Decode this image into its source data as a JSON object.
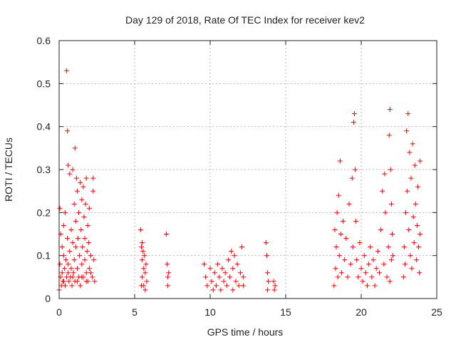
{
  "chart_data": {
    "type": "scatter",
    "title": "Day 129 of 2018, Rate Of TEC Index for receiver kev2",
    "xlabel": "GPS time / hours",
    "ylabel": "ROTI / TECUs",
    "xlim": [
      0,
      25
    ],
    "ylim": [
      0,
      0.6
    ],
    "x_ticks": [
      0,
      5,
      10,
      15,
      20,
      25
    ],
    "x_tick_labels": [
      "0",
      "5",
      "10",
      "15",
      "20",
      "25"
    ],
    "y_ticks": [
      0,
      0.1,
      0.2,
      0.3,
      0.4,
      0.5,
      0.6
    ],
    "y_tick_labels": [
      "0",
      "0.1",
      "0.2",
      "0.3",
      "0.4",
      "0.5",
      "0.6"
    ],
    "grid": true,
    "marker": "+",
    "color": "#ff0000",
    "series": [
      {
        "name": "ROTI",
        "points": [
          [
            0.0,
            0.02
          ],
          [
            0.05,
            0.21
          ],
          [
            0.05,
            0.08
          ],
          [
            0.1,
            0.05
          ],
          [
            0.1,
            0.15
          ],
          [
            0.15,
            0.03
          ],
          [
            0.2,
            0.12
          ],
          [
            0.2,
            0.06
          ],
          [
            0.25,
            0.04
          ],
          [
            0.3,
            0.1
          ],
          [
            0.3,
            0.17
          ],
          [
            0.35,
            0.07
          ],
          [
            0.4,
            0.03
          ],
          [
            0.4,
            0.2
          ],
          [
            0.45,
            0.09
          ],
          [
            0.5,
            0.05
          ],
          [
            0.5,
            0.53
          ],
          [
            0.55,
            0.39
          ],
          [
            0.55,
            0.14
          ],
          [
            0.6,
            0.31
          ],
          [
            0.6,
            0.08
          ],
          [
            0.65,
            0.04
          ],
          [
            0.7,
            0.29
          ],
          [
            0.7,
            0.11
          ],
          [
            0.75,
            0.05
          ],
          [
            0.8,
            0.16
          ],
          [
            0.8,
            0.07
          ],
          [
            0.85,
            0.03
          ],
          [
            0.9,
            0.13
          ],
          [
            0.9,
            0.3
          ],
          [
            0.95,
            0.06
          ],
          [
            1.0,
            0.22
          ],
          [
            1.0,
            0.09
          ],
          [
            1.05,
            0.35
          ],
          [
            1.05,
            0.04
          ],
          [
            1.1,
            0.18
          ],
          [
            1.1,
            0.12
          ],
          [
            1.15,
            0.28
          ],
          [
            1.2,
            0.07
          ],
          [
            1.2,
            0.25
          ],
          [
            1.25,
            0.14
          ],
          [
            1.3,
            0.05
          ],
          [
            1.3,
            0.2
          ],
          [
            1.35,
            0.1
          ],
          [
            1.4,
            0.27
          ],
          [
            1.4,
            0.03
          ],
          [
            1.45,
            0.16
          ],
          [
            1.5,
            0.08
          ],
          [
            1.5,
            0.23
          ],
          [
            1.55,
            0.12
          ],
          [
            1.6,
            0.26
          ],
          [
            1.6,
            0.05
          ],
          [
            1.65,
            0.19
          ],
          [
            1.7,
            0.09
          ],
          [
            1.7,
            0.14
          ],
          [
            1.75,
            0.22
          ],
          [
            1.8,
            0.06
          ],
          [
            1.8,
            0.28
          ],
          [
            1.85,
            0.11
          ],
          [
            1.9,
            0.17
          ],
          [
            1.9,
            0.04
          ],
          [
            1.95,
            0.13
          ],
          [
            2.0,
            0.21
          ],
          [
            2.0,
            0.07
          ],
          [
            2.1,
            0.1
          ],
          [
            2.2,
            0.05
          ],
          [
            2.25,
            0.28
          ],
          [
            2.25,
            0.25
          ],
          [
            2.3,
            0.09
          ],
          [
            2.35,
            0.04
          ],
          [
            0.3,
            0.04
          ],
          [
            0.6,
            0.06
          ],
          [
            0.9,
            0.05
          ],
          [
            1.2,
            0.04
          ],
          [
            1.5,
            0.05
          ],
          [
            1.8,
            0.04
          ],
          [
            2.1,
            0.06
          ],
          [
            5.4,
            0.16
          ],
          [
            5.45,
            0.12
          ],
          [
            5.5,
            0.09
          ],
          [
            5.5,
            0.05
          ],
          [
            5.55,
            0.11
          ],
          [
            5.6,
            0.07
          ],
          [
            5.6,
            0.03
          ],
          [
            5.65,
            0.1
          ],
          [
            5.7,
            0.06
          ],
          [
            5.7,
            0.02
          ],
          [
            5.75,
            0.08
          ],
          [
            5.8,
            0.04
          ],
          [
            5.45,
            0.03
          ],
          [
            5.5,
            0.13
          ],
          [
            7.1,
            0.15
          ],
          [
            7.15,
            0.08
          ],
          [
            7.2,
            0.05
          ],
          [
            7.2,
            0.03
          ],
          [
            7.25,
            0.06
          ],
          [
            9.6,
            0.08
          ],
          [
            9.7,
            0.05
          ],
          [
            9.8,
            0.03
          ],
          [
            10.0,
            0.07
          ],
          [
            10.1,
            0.04
          ],
          [
            10.2,
            0.02
          ],
          [
            10.3,
            0.06
          ],
          [
            10.4,
            0.03
          ],
          [
            10.5,
            0.08
          ],
          [
            10.6,
            0.05
          ],
          [
            10.7,
            0.02
          ],
          [
            10.8,
            0.07
          ],
          [
            10.9,
            0.04
          ],
          [
            11.0,
            0.06
          ],
          [
            11.1,
            0.03
          ],
          [
            11.2,
            0.09
          ],
          [
            11.3,
            0.05
          ],
          [
            11.4,
            0.11
          ],
          [
            11.5,
            0.07
          ],
          [
            11.6,
            0.1
          ],
          [
            11.7,
            0.04
          ],
          [
            11.8,
            0.08
          ],
          [
            11.9,
            0.03
          ],
          [
            12.0,
            0.06
          ],
          [
            12.1,
            0.12
          ],
          [
            12.2,
            0.05
          ],
          [
            11.5,
            0.02
          ],
          [
            12.2,
            0.03
          ],
          [
            13.7,
            0.13
          ],
          [
            13.75,
            0.1
          ],
          [
            13.8,
            0.06
          ],
          [
            13.8,
            0.02
          ],
          [
            13.85,
            0.04
          ],
          [
            14.2,
            0.04
          ],
          [
            14.25,
            0.02
          ],
          [
            14.3,
            0.03
          ],
          [
            18.2,
            0.03
          ],
          [
            18.25,
            0.16
          ],
          [
            18.3,
            0.07
          ],
          [
            18.35,
            0.12
          ],
          [
            18.4,
            0.2
          ],
          [
            18.45,
            0.05
          ],
          [
            18.5,
            0.24
          ],
          [
            18.55,
            0.1
          ],
          [
            18.6,
            0.32
          ],
          [
            18.65,
            0.15
          ],
          [
            18.7,
            0.06
          ],
          [
            18.8,
            0.18
          ],
          [
            18.9,
            0.09
          ],
          [
            19.0,
            0.14
          ],
          [
            19.1,
            0.05
          ],
          [
            19.2,
            0.22
          ],
          [
            19.3,
            0.08
          ],
          [
            19.4,
            0.28
          ],
          [
            19.45,
            0.12
          ],
          [
            19.5,
            0.41
          ],
          [
            19.55,
            0.43
          ],
          [
            19.6,
            0.3
          ],
          [
            19.65,
            0.18
          ],
          [
            19.7,
            0.09
          ],
          [
            19.8,
            0.05
          ],
          [
            19.9,
            0.13
          ],
          [
            20.0,
            0.07
          ],
          [
            20.1,
            0.04
          ],
          [
            20.2,
            0.1
          ],
          [
            20.3,
            0.06
          ],
          [
            20.4,
            0.03
          ],
          [
            20.5,
            0.08
          ],
          [
            20.6,
            0.12
          ],
          [
            20.7,
            0.05
          ],
          [
            20.8,
            0.09
          ],
          [
            20.9,
            0.03
          ],
          [
            21.0,
            0.07
          ],
          [
            21.1,
            0.11
          ],
          [
            21.2,
            0.06
          ],
          [
            21.3,
            0.16
          ],
          [
            21.4,
            0.25
          ],
          [
            21.5,
            0.08
          ],
          [
            21.55,
            0.29
          ],
          [
            21.6,
            0.2
          ],
          [
            21.7,
            0.05
          ],
          [
            21.8,
            0.12
          ],
          [
            21.85,
            0.38
          ],
          [
            21.9,
            0.44
          ],
          [
            21.95,
            0.3
          ],
          [
            22.0,
            0.22
          ],
          [
            22.0,
            0.09
          ],
          [
            22.05,
            0.15
          ],
          [
            21.9,
            0.04
          ],
          [
            22.1,
            0.1
          ],
          [
            22.8,
            0.05
          ],
          [
            22.85,
            0.12
          ],
          [
            22.9,
            0.08
          ],
          [
            22.95,
            0.2
          ],
          [
            23.0,
            0.39
          ],
          [
            23.05,
            0.25
          ],
          [
            23.1,
            0.43
          ],
          [
            23.15,
            0.16
          ],
          [
            23.2,
            0.34
          ],
          [
            23.25,
            0.1
          ],
          [
            23.3,
            0.28
          ],
          [
            23.35,
            0.07
          ],
          [
            23.4,
            0.36
          ],
          [
            23.45,
            0.19
          ],
          [
            23.5,
            0.13
          ],
          [
            23.55,
            0.31
          ],
          [
            23.6,
            0.22
          ],
          [
            23.65,
            0.09
          ],
          [
            23.7,
            0.17
          ],
          [
            23.75,
            0.26
          ],
          [
            23.8,
            0.12
          ],
          [
            23.85,
            0.06
          ],
          [
            23.9,
            0.15
          ],
          [
            23.9,
            0.32
          ]
        ]
      }
    ]
  }
}
